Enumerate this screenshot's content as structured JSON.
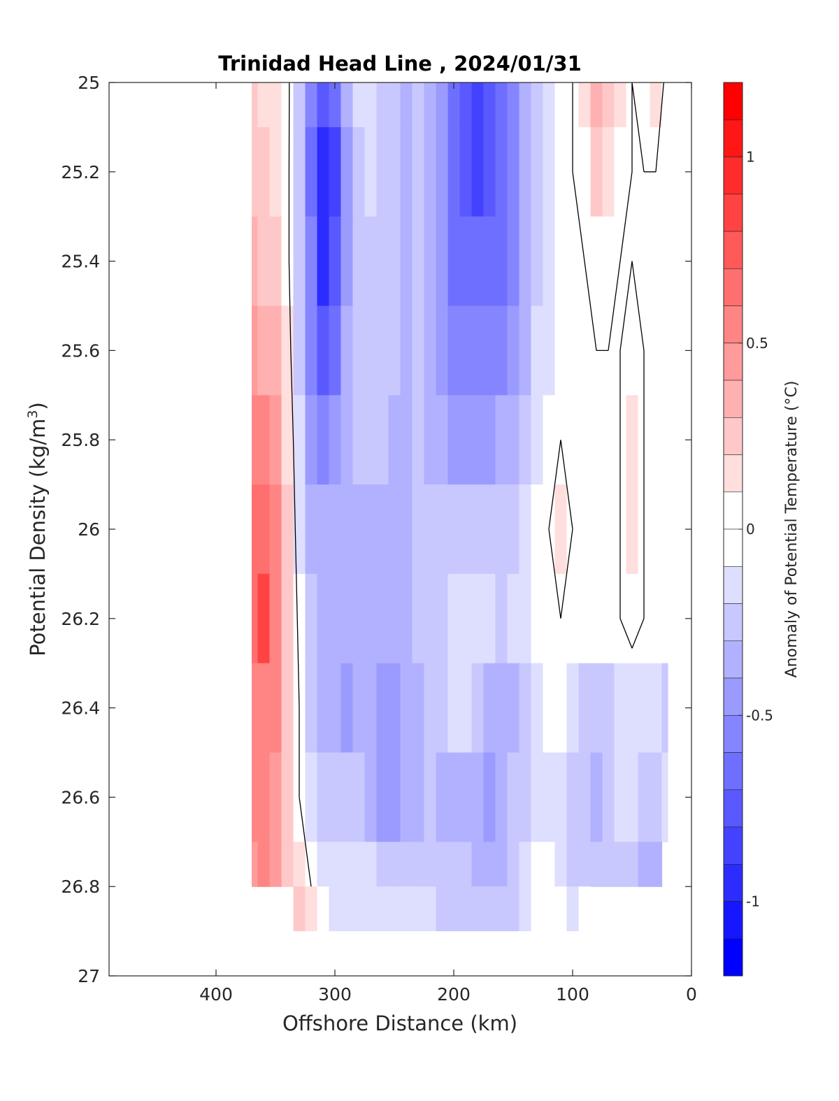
{
  "chart_data": {
    "type": "heatmap",
    "subtype": "filled-contour",
    "title": "Trinidad Head Line , 2024/01/31",
    "xlabel": "Offshore Distance (km)",
    "ylabel_main": "Potential Density (kg/m",
    "ylabel_sup": "3",
    "ylabel_end": ")",
    "colorbar_label": "Anomaly of Potential Temperature (°C)",
    "x_axis": {
      "reversed": true,
      "range": [
        490,
        0
      ],
      "ticks": [
        400,
        300,
        200,
        100,
        0
      ],
      "tick_labels": [
        "400",
        "300",
        "200",
        "100",
        "0"
      ]
    },
    "y_axis": {
      "reversed": true,
      "range": [
        25,
        27
      ],
      "ticks": [
        25,
        25.2,
        25.4,
        25.6,
        25.8,
        26,
        26.2,
        26.4,
        26.6,
        26.8,
        27
      ],
      "tick_labels": [
        "25",
        "25.2",
        "25.4",
        "25.6",
        "25.8",
        "26",
        "26.2",
        "26.4",
        "26.6",
        "26.8",
        "27"
      ]
    },
    "colorbar": {
      "range": [
        -1.2,
        1.2
      ],
      "step": 0.1,
      "ticks": [
        1,
        0.5,
        0,
        -0.5,
        -1
      ],
      "tick_labels": [
        "1",
        "0.5",
        "0",
        "-0.5",
        "-1"
      ],
      "hi_color": "#ff0000",
      "lo_color": "#0000ff"
    },
    "grid": false,
    "zero_contour": "black line",
    "x": [
      370,
      360,
      350,
      340,
      330,
      320,
      310,
      300,
      290,
      280,
      270,
      260,
      250,
      240,
      230,
      220,
      210,
      200,
      190,
      180,
      170,
      160,
      150,
      140,
      130,
      120,
      110,
      100,
      90,
      80,
      70,
      60,
      50,
      40,
      30,
      20
    ],
    "y": [
      25.0,
      25.2,
      25.4,
      25.6,
      25.8,
      26.0,
      26.2,
      26.4,
      26.6,
      26.8
    ],
    "values": [
      [
        0.2,
        0.18,
        0.12,
        0.05,
        -0.25,
        -0.55,
        -0.8,
        -0.7,
        -0.4,
        -0.2,
        -0.15,
        -0.25,
        -0.3,
        -0.35,
        -0.3,
        -0.35,
        -0.5,
        -0.7,
        -0.8,
        -0.85,
        -0.8,
        -0.7,
        -0.6,
        -0.4,
        -0.25,
        -0.15,
        -0.05,
        0.0,
        0.1,
        0.3,
        0.25,
        0.1,
        0.0,
        0.05,
        0.1,
        -0.05
      ],
      [
        0.22,
        0.2,
        0.15,
        0.05,
        -0.3,
        -0.65,
        -1.0,
        -0.85,
        -0.45,
        -0.25,
        -0.2,
        -0.25,
        -0.3,
        -0.35,
        -0.3,
        -0.35,
        -0.5,
        -0.7,
        -0.8,
        -0.9,
        -0.8,
        -0.7,
        -0.6,
        -0.4,
        -0.25,
        -0.15,
        -0.05,
        0.0,
        0.05,
        0.2,
        0.15,
        0.05,
        0.0,
        0.0,
        0.0,
        -0.05
      ],
      [
        0.3,
        0.25,
        0.2,
        0.05,
        -0.3,
        -0.6,
        -0.95,
        -0.8,
        -0.45,
        -0.3,
        -0.25,
        -0.3,
        -0.3,
        -0.35,
        -0.3,
        -0.35,
        -0.5,
        -0.65,
        -0.7,
        -0.7,
        -0.7,
        -0.65,
        -0.55,
        -0.4,
        -0.25,
        -0.15,
        -0.05,
        0.0,
        0.0,
        0.05,
        0.05,
        0.0,
        0.0,
        0.0,
        0.0,
        0.0
      ],
      [
        0.4,
        0.35,
        0.3,
        0.1,
        -0.25,
        -0.55,
        -0.8,
        -0.65,
        -0.4,
        -0.3,
        -0.25,
        -0.3,
        -0.3,
        -0.35,
        -0.3,
        -0.35,
        -0.45,
        -0.55,
        -0.6,
        -0.6,
        -0.55,
        -0.55,
        -0.45,
        -0.35,
        -0.2,
        -0.1,
        0.0,
        0.0,
        0.0,
        0.0,
        0.0,
        0.0,
        0.05,
        0.0,
        0.0,
        0.0
      ],
      [
        0.5,
        0.5,
        0.4,
        0.15,
        -0.15,
        -0.45,
        -0.55,
        -0.5,
        -0.4,
        -0.3,
        -0.3,
        -0.3,
        -0.35,
        -0.35,
        -0.3,
        -0.35,
        -0.4,
        -0.45,
        -0.45,
        -0.45,
        -0.45,
        -0.4,
        -0.35,
        -0.25,
        -0.1,
        -0.05,
        0.0,
        0.0,
        0.0,
        0.0,
        0.0,
        0.0,
        0.1,
        0.0,
        0.0,
        0.0
      ],
      [
        0.65,
        0.7,
        0.55,
        0.2,
        -0.1,
        -0.35,
        -0.4,
        -0.4,
        -0.35,
        -0.35,
        -0.35,
        -0.35,
        -0.35,
        -0.35,
        -0.3,
        -0.25,
        -0.25,
        -0.25,
        -0.3,
        -0.3,
        -0.3,
        -0.3,
        -0.25,
        -0.15,
        -0.05,
        0.0,
        0.15,
        0.0,
        0.0,
        0.0,
        0.0,
        0.0,
        0.15,
        0.0,
        0.0,
        0.0
      ],
      [
        0.7,
        0.8,
        0.6,
        0.25,
        -0.05,
        -0.3,
        -0.4,
        -0.4,
        -0.35,
        -0.35,
        -0.4,
        -0.4,
        -0.4,
        -0.35,
        -0.3,
        -0.25,
        -0.25,
        -0.2,
        -0.15,
        -0.15,
        -0.2,
        -0.25,
        -0.2,
        -0.15,
        -0.05,
        0.0,
        0.0,
        0.0,
        0.0,
        0.0,
        0.0,
        0.0,
        0.05,
        0.0,
        -0.05,
        -0.05
      ],
      [
        0.55,
        0.6,
        0.5,
        0.25,
        0.0,
        -0.25,
        -0.35,
        -0.4,
        -0.45,
        -0.35,
        -0.4,
        -0.45,
        -0.45,
        -0.4,
        -0.35,
        -0.3,
        -0.25,
        -0.2,
        -0.15,
        -0.25,
        -0.35,
        -0.4,
        -0.35,
        -0.25,
        -0.15,
        -0.05,
        0.0,
        -0.15,
        -0.25,
        -0.3,
        -0.25,
        -0.2,
        -0.1,
        -0.15,
        -0.2,
        -0.25
      ],
      [
        0.5,
        0.55,
        0.45,
        0.25,
        0.0,
        -0.2,
        -0.25,
        -0.25,
        -0.25,
        -0.25,
        -0.35,
        -0.45,
        -0.45,
        -0.4,
        -0.35,
        -0.3,
        -0.35,
        -0.35,
        -0.35,
        -0.4,
        -0.45,
        -0.35,
        -0.3,
        -0.25,
        -0.2,
        -0.15,
        -0.15,
        -0.25,
        -0.3,
        -0.35,
        -0.25,
        -0.15,
        -0.2,
        -0.3,
        -0.25,
        -0.15
      ],
      [
        0.45,
        0.5,
        0.4,
        0.25,
        0.1,
        0.0,
        -0.1,
        -0.15,
        -0.2,
        -0.2,
        -0.2,
        -0.25,
        -0.25,
        -0.25,
        -0.25,
        -0.3,
        -0.3,
        -0.3,
        -0.3,
        -0.35,
        -0.4,
        -0.35,
        -0.25,
        -0.15,
        -0.05,
        -0.05,
        -0.15,
        -0.25,
        -0.3,
        -0.3,
        -0.25,
        -0.25,
        -0.3,
        -0.35,
        -0.35,
        null
      ]
    ],
    "deep_row": {
      "y": 26.9,
      "x": [
        330,
        320,
        310,
        300,
        290,
        280,
        270,
        260,
        250,
        240,
        230,
        220,
        210,
        200,
        190,
        180,
        170,
        160,
        150,
        140,
        130,
        120,
        110,
        100,
        90
      ],
      "values": [
        0.2,
        0.1,
        0.0,
        -0.1,
        -0.15,
        -0.15,
        -0.15,
        -0.15,
        -0.2,
        -0.2,
        -0.2,
        -0.2,
        -0.25,
        -0.25,
        -0.3,
        -0.3,
        -0.3,
        -0.3,
        -0.25,
        -0.1,
        0.0,
        0.0,
        -0.05,
        -0.1,
        0.0
      ]
    }
  }
}
